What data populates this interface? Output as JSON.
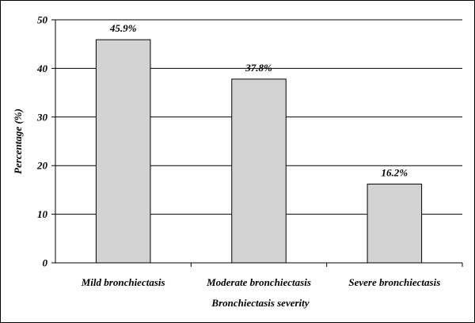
{
  "chart_data": {
    "type": "bar",
    "title": "",
    "xlabel": "Bronchiectasis severity",
    "ylabel": "Percentage (%)",
    "ylim": [
      0,
      50
    ],
    "yticks": [
      "0",
      "10",
      "20",
      "30",
      "40",
      "50"
    ],
    "grid": true,
    "categories": [
      "Mild bronchiectasis",
      "Moderate bronchiectasis",
      "Severe bronchiectasis"
    ],
    "values": [
      45.9,
      37.8,
      16.2
    ],
    "data_labels": [
      "45.9%",
      "37.8%",
      "16.2%"
    ],
    "bar_color": "#d3d3d3",
    "bar_edge_color": "#000000"
  }
}
